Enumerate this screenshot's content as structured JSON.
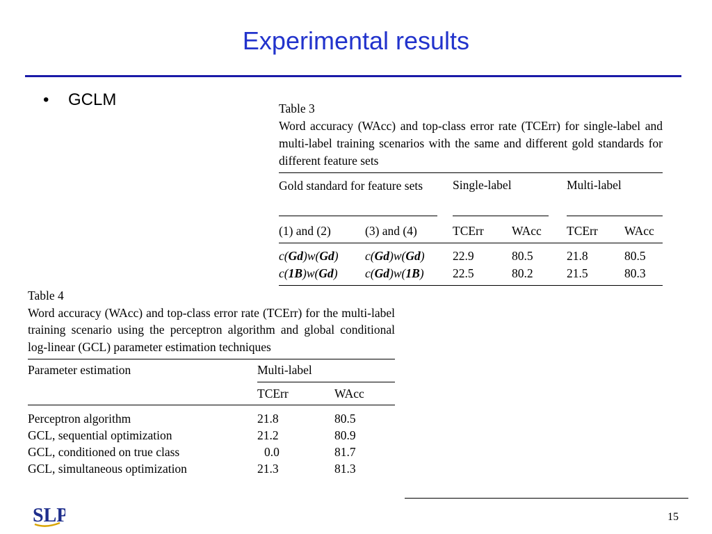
{
  "slide": {
    "title": "Experimental results",
    "bullet": "GCLM",
    "page_number": "15",
    "logo_text": "SLP"
  },
  "table3": {
    "label": "Table 3",
    "caption": "Word accuracy (WAcc) and top-class error rate (TCErr) for single-label and multi-label training scenarios with the same and different gold standards for different feature sets",
    "header_gold": "Gold standard for feature sets",
    "header_single": "Single-label",
    "header_multi": "Multi-label",
    "sub_col1": "(1) and (2)",
    "sub_col2": "(3) and (4)",
    "sub_tcerr1": "TCErr",
    "sub_wacc1": "WAcc",
    "sub_tcerr2": "TCErr",
    "sub_wacc2": "WAcc",
    "rows": [
      {
        "c1a": "c(",
        "c1b": "Gd",
        "c1c": ")w(",
        "c1d": "Gd",
        "c1e": ")",
        "c2a": "c(",
        "c2b": "Gd",
        "c2c": ")w(",
        "c2d": "Gd",
        "c2e": ")",
        "s_tcerr": "22.9",
        "s_wacc": "80.5",
        "m_tcerr": "21.8",
        "m_wacc": "80.5"
      },
      {
        "c1a": "c(",
        "c1b": "1B",
        "c1c": ")w(",
        "c1d": "Gd",
        "c1e": ")",
        "c2a": "c(",
        "c2b": "Gd",
        "c2c": ")w(",
        "c2d": "1B",
        "c2e": ")",
        "s_tcerr": "22.5",
        "s_wacc": "80.2",
        "m_tcerr": "21.5",
        "m_wacc": "80.3"
      }
    ]
  },
  "table4": {
    "label": "Table 4",
    "caption": "Word accuracy (WAcc) and top-class error rate (TCErr) for the multi-label training scenario using the perceptron algorithm and global conditional log-linear (GCL) parameter estimation techniques",
    "header_param": "Parameter estimation",
    "header_multi": "Multi-label",
    "sub_tcerr": "TCErr",
    "sub_wacc": "WAcc",
    "rows": [
      {
        "method": "Perceptron algorithm",
        "tcerr": "21.8",
        "wacc": "80.5"
      },
      {
        "method": "GCL, sequential optimization",
        "tcerr": "21.2",
        "wacc": "80.9"
      },
      {
        "method": "GCL, conditioned on true class",
        "tcerr": "0.0",
        "wacc": "81.7"
      },
      {
        "method": "GCL, simultaneous optimization",
        "tcerr": "21.3",
        "wacc": "81.3"
      }
    ]
  }
}
